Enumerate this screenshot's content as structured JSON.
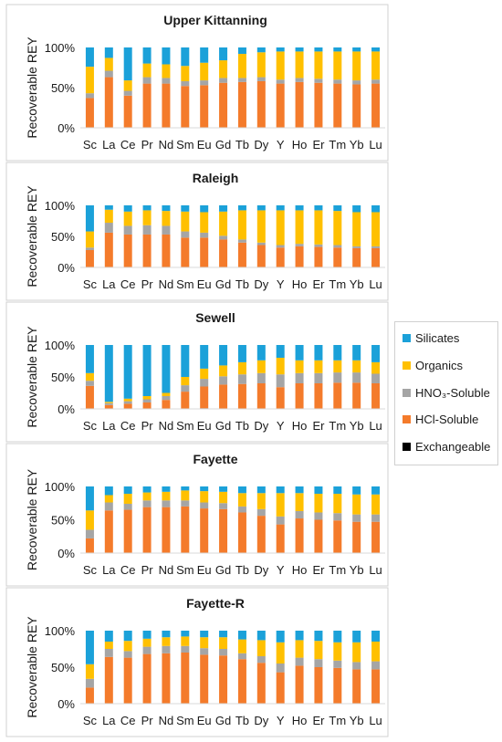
{
  "legend": {
    "items": [
      {
        "label": "Silicates",
        "color": "#1ba1d9"
      },
      {
        "label": "Organics",
        "color": "#ffc000"
      },
      {
        "label": "HNO₃-Soluble",
        "color": "#a5a5a5"
      },
      {
        "label": "HCl-Soluble",
        "color": "#f47b2b"
      },
      {
        "label": "Exchangeable",
        "color": "#000000"
      }
    ]
  },
  "chart_data": [
    {
      "type": "bar",
      "stacked": true,
      "title": "Upper Kittanning",
      "ylabel": "Recoverable REY",
      "ylim": [
        0,
        100
      ],
      "yticks": [
        "0%",
        "50%",
        "100%"
      ],
      "categories": [
        "Sc",
        "La",
        "Ce",
        "Pr",
        "Nd",
        "Sm",
        "Eu",
        "Gd",
        "Tb",
        "Dy",
        "Y",
        "Ho",
        "Er",
        "Tm",
        "Yb",
        "Lu"
      ],
      "series": [
        {
          "name": "Exchangeable",
          "values": [
            0,
            0,
            0,
            0,
            0,
            0,
            0,
            0,
            0,
            0,
            0,
            0,
            0,
            0,
            0,
            0
          ]
        },
        {
          "name": "HCl-Soluble",
          "values": [
            37,
            63,
            40,
            55,
            55,
            52,
            53,
            56,
            57,
            58,
            55,
            57,
            56,
            55,
            54,
            55
          ]
        },
        {
          "name": "HNO₃-Soluble",
          "values": [
            6,
            8,
            6,
            8,
            7,
            6,
            6,
            6,
            5,
            5,
            5,
            5,
            5,
            5,
            5,
            5
          ]
        },
        {
          "name": "Organics",
          "values": [
            33,
            16,
            13,
            17,
            17,
            19,
            22,
            22,
            30,
            31,
            35,
            33,
            34,
            35,
            36,
            35
          ]
        },
        {
          "name": "Silicates",
          "values": [
            24,
            13,
            41,
            20,
            21,
            23,
            19,
            16,
            8,
            6,
            5,
            5,
            5,
            5,
            5,
            5
          ]
        }
      ]
    },
    {
      "type": "bar",
      "stacked": true,
      "title": "Raleigh",
      "ylabel": "Recoverable REY",
      "ylim": [
        0,
        100
      ],
      "yticks": [
        "0%",
        "50%",
        "100%"
      ],
      "categories": [
        "Sc",
        "La",
        "Ce",
        "Pr",
        "Nd",
        "Sm",
        "Eu",
        "Gd",
        "Tb",
        "Dy",
        "Y",
        "Ho",
        "Er",
        "Tm",
        "Yb",
        "Lu"
      ],
      "series": [
        {
          "name": "Exchangeable",
          "values": [
            0,
            0,
            0,
            0,
            0,
            0,
            0,
            0,
            0,
            0,
            0,
            0,
            0,
            0,
            0,
            0
          ]
        },
        {
          "name": "HCl-Soluble",
          "values": [
            28,
            56,
            53,
            53,
            53,
            48,
            48,
            45,
            40,
            36,
            32,
            34,
            33,
            32,
            31,
            31
          ]
        },
        {
          "name": "HNO₃-Soluble",
          "values": [
            4,
            16,
            14,
            15,
            14,
            10,
            8,
            6,
            5,
            4,
            4,
            4,
            4,
            4,
            3,
            3
          ]
        },
        {
          "name": "Organics",
          "values": [
            26,
            21,
            23,
            24,
            24,
            32,
            33,
            39,
            47,
            52,
            56,
            54,
            55,
            55,
            55,
            55
          ]
        },
        {
          "name": "Silicates",
          "values": [
            42,
            7,
            10,
            8,
            9,
            10,
            11,
            10,
            8,
            8,
            8,
            8,
            8,
            9,
            11,
            11
          ]
        }
      ]
    },
    {
      "type": "bar",
      "stacked": true,
      "title": "Sewell",
      "ylabel": "Recoverable REY",
      "ylim": [
        0,
        100
      ],
      "yticks": [
        "0%",
        "50%",
        "100%"
      ],
      "categories": [
        "Sc",
        "La",
        "Ce",
        "Pr",
        "Nd",
        "Sm",
        "Eu",
        "Gd",
        "Tb",
        "Dy",
        "Y",
        "Ho",
        "Er",
        "Tm",
        "Yb",
        "Lu"
      ],
      "series": [
        {
          "name": "Exchangeable",
          "values": [
            0,
            0,
            0,
            0,
            0,
            0,
            1,
            0,
            0,
            0,
            0,
            0,
            0,
            0,
            0,
            0
          ]
        },
        {
          "name": "HCl-Soluble",
          "values": [
            36,
            6,
            8,
            10,
            14,
            27,
            34,
            38,
            39,
            40,
            34,
            40,
            40,
            41,
            41,
            40
          ]
        },
        {
          "name": "HNO₃-Soluble",
          "values": [
            8,
            3,
            4,
            5,
            6,
            10,
            12,
            13,
            15,
            16,
            20,
            16,
            16,
            16,
            16,
            15
          ]
        },
        {
          "name": "Organics",
          "values": [
            12,
            2,
            4,
            5,
            5,
            13,
            16,
            17,
            19,
            20,
            26,
            20,
            20,
            19,
            19,
            18
          ]
        },
        {
          "name": "Silicates",
          "values": [
            44,
            89,
            84,
            80,
            75,
            50,
            37,
            32,
            27,
            24,
            20,
            24,
            24,
            24,
            24,
            27
          ]
        }
      ]
    },
    {
      "type": "bar",
      "stacked": true,
      "title": "Fayette",
      "ylabel": "Recoverable REY",
      "ylim": [
        0,
        100
      ],
      "yticks": [
        "0%",
        "50%",
        "100%"
      ],
      "categories": [
        "Sc",
        "La",
        "Ce",
        "Pr",
        "Nd",
        "Sm",
        "Eu",
        "Gd",
        "Tb",
        "Dy",
        "Y",
        "Ho",
        "Er",
        "Tm",
        "Yb",
        "Lu"
      ],
      "series": [
        {
          "name": "Exchangeable",
          "values": [
            0,
            0,
            0,
            0,
            0,
            0,
            0,
            0,
            0,
            0,
            0,
            0,
            0,
            0,
            0,
            0
          ]
        },
        {
          "name": "HCl-Soluble",
          "values": [
            22,
            64,
            65,
            69,
            69,
            70,
            67,
            66,
            61,
            56,
            43,
            52,
            50,
            49,
            47,
            47
          ]
        },
        {
          "name": "HNO₃-Soluble",
          "values": [
            13,
            12,
            9,
            10,
            10,
            9,
            9,
            9,
            9,
            10,
            12,
            11,
            11,
            11,
            11,
            11
          ]
        },
        {
          "name": "Organics",
          "values": [
            29,
            11,
            15,
            12,
            13,
            15,
            17,
            17,
            20,
            24,
            35,
            27,
            28,
            29,
            30,
            30
          ]
        },
        {
          "name": "Silicates",
          "values": [
            36,
            13,
            11,
            9,
            8,
            6,
            7,
            8,
            10,
            10,
            10,
            10,
            11,
            11,
            12,
            12
          ]
        }
      ]
    },
    {
      "type": "bar",
      "stacked": true,
      "title": "Fayette-R",
      "ylabel": "Recoverable REY",
      "ylim": [
        0,
        100
      ],
      "yticks": [
        "0%",
        "50%",
        "100%"
      ],
      "categories": [
        "Sc",
        "La",
        "Ce",
        "Pr",
        "Nd",
        "Sm",
        "Eu",
        "Gd",
        "Tb",
        "Dy",
        "Y",
        "Ho",
        "Er",
        "Tm",
        "Yb",
        "Lu"
      ],
      "series": [
        {
          "name": "Exchangeable",
          "values": [
            0,
            0,
            0,
            0,
            0,
            0,
            0,
            0,
            0,
            0,
            0,
            0,
            0,
            0,
            0,
            0
          ]
        },
        {
          "name": "HCl-Soluble",
          "values": [
            22,
            64,
            63,
            68,
            69,
            70,
            67,
            66,
            61,
            56,
            43,
            52,
            50,
            49,
            47,
            47
          ]
        },
        {
          "name": "HNO₃-Soluble",
          "values": [
            12,
            11,
            9,
            10,
            10,
            9,
            9,
            9,
            8,
            9,
            12,
            11,
            11,
            10,
            10,
            11
          ]
        },
        {
          "name": "Organics",
          "values": [
            20,
            10,
            14,
            11,
            12,
            13,
            15,
            16,
            19,
            22,
            29,
            24,
            25,
            25,
            27,
            27
          ]
        },
        {
          "name": "Silicates",
          "values": [
            46,
            15,
            14,
            11,
            9,
            8,
            9,
            9,
            12,
            13,
            16,
            13,
            14,
            16,
            16,
            15
          ]
        }
      ]
    }
  ]
}
